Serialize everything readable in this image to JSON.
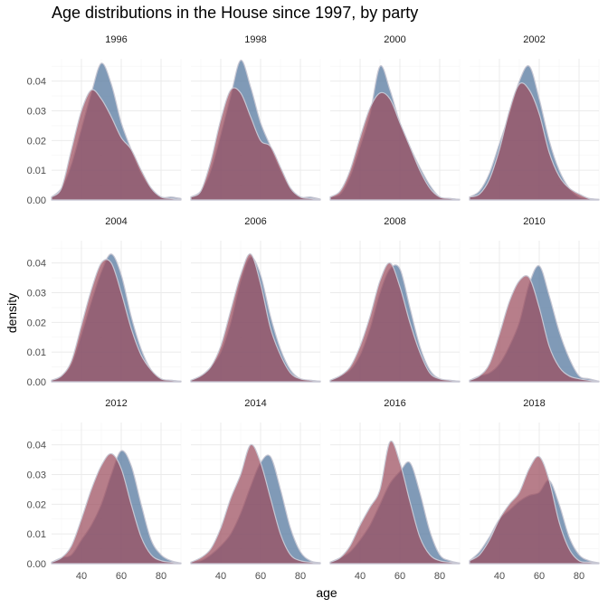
{
  "chart_data": {
    "type": "area",
    "title": "Age distributions in the House since 1997, by party",
    "xlabel": "age",
    "ylabel": "density",
    "xlim": [
      25,
      90
    ],
    "ylim": [
      0,
      0.0475
    ],
    "x_ticks": [
      40,
      60,
      80
    ],
    "y_ticks": [
      0.0,
      0.01,
      0.02,
      0.03,
      0.04
    ],
    "y_tick_labels": [
      "0.00",
      "0.01",
      "0.02",
      "0.03",
      "0.04"
    ],
    "grid": true,
    "facet_layout": {
      "rows": 3,
      "cols": 4
    },
    "colors": {
      "democrat_fill": "#4f739b",
      "republican_fill": "#9b4c5d",
      "outline": "#c7c7d3",
      "grid_major": "#ebebeb",
      "grid_minor": "#f5f5f5"
    },
    "x": [
      25,
      30,
      35,
      40,
      45,
      50,
      55,
      60,
      65,
      70,
      75,
      80,
      85,
      90
    ],
    "panels": [
      {
        "label": "1996",
        "series": [
          {
            "values": [
              0.001,
              0.004,
              0.012,
              0.024,
              0.036,
              0.046,
              0.039,
              0.026,
              0.017,
              0.009,
              0.004,
              0.001,
              0.001,
              0.0005
            ]
          },
          {
            "values": [
              0.001,
              0.004,
              0.017,
              0.03,
              0.037,
              0.034,
              0.028,
              0.021,
              0.017,
              0.01,
              0.004,
              0.001,
              0.0005,
              0.0002
            ]
          }
        ]
      },
      {
        "label": "1998",
        "series": [
          {
            "values": [
              0.001,
              0.003,
              0.01,
              0.022,
              0.035,
              0.047,
              0.038,
              0.026,
              0.018,
              0.01,
              0.004,
              0.001,
              0.001,
              0.0003
            ]
          },
          {
            "values": [
              0.001,
              0.003,
              0.013,
              0.027,
              0.037,
              0.036,
              0.028,
              0.02,
              0.018,
              0.011,
              0.004,
              0.001,
              0.0005,
              0.0002
            ]
          }
        ]
      },
      {
        "label": "2000",
        "series": [
          {
            "values": [
              0.001,
              0.002,
              0.008,
              0.018,
              0.029,
              0.045,
              0.037,
              0.026,
              0.018,
              0.011,
              0.005,
              0.001,
              0.0005,
              0.0002
            ]
          },
          {
            "values": [
              0.001,
              0.003,
              0.01,
              0.021,
              0.031,
              0.036,
              0.034,
              0.026,
              0.018,
              0.01,
              0.004,
              0.001,
              0.0005,
              0.0002
            ]
          }
        ]
      },
      {
        "label": "2002",
        "series": [
          {
            "values": [
              0.001,
              0.003,
              0.009,
              0.019,
              0.029,
              0.04,
              0.045,
              0.034,
              0.02,
              0.01,
              0.004,
              0.001,
              0.0005,
              0.0002
            ]
          },
          {
            "values": [
              0.001,
              0.002,
              0.007,
              0.017,
              0.03,
              0.039,
              0.037,
              0.029,
              0.016,
              0.008,
              0.004,
              0.002,
              0.0005,
              0.0002
            ]
          }
        ]
      },
      {
        "label": "2004",
        "series": [
          {
            "values": [
              0.0005,
              0.002,
              0.006,
              0.016,
              0.027,
              0.037,
              0.043,
              0.036,
              0.022,
              0.011,
              0.004,
              0.001,
              0.0005,
              0.0002
            ]
          },
          {
            "values": [
              0.0005,
              0.002,
              0.007,
              0.019,
              0.031,
              0.04,
              0.04,
              0.03,
              0.018,
              0.009,
              0.004,
              0.001,
              0.0005,
              0.0002
            ]
          }
        ]
      },
      {
        "label": "2006",
        "series": [
          {
            "values": [
              0.0005,
              0.002,
              0.005,
              0.01,
              0.02,
              0.034,
              0.042,
              0.036,
              0.022,
              0.011,
              0.004,
              0.001,
              0.0005,
              0.0002
            ]
          },
          {
            "values": [
              0.0005,
              0.002,
              0.005,
              0.012,
              0.024,
              0.036,
              0.043,
              0.033,
              0.018,
              0.009,
              0.003,
              0.001,
              0.0005,
              0.0002
            ]
          }
        ]
      },
      {
        "label": "2008",
        "series": [
          {
            "values": [
              0.0005,
              0.002,
              0.004,
              0.009,
              0.018,
              0.03,
              0.038,
              0.038,
              0.025,
              0.012,
              0.004,
              0.001,
              0.0005,
              0.0002
            ]
          },
          {
            "values": [
              0.0005,
              0.002,
              0.005,
              0.012,
              0.022,
              0.034,
              0.04,
              0.032,
              0.02,
              0.01,
              0.003,
              0.001,
              0.0005,
              0.0002
            ]
          }
        ]
      },
      {
        "label": "2010",
        "series": [
          {
            "values": [
              0.0005,
              0.002,
              0.003,
              0.006,
              0.012,
              0.02,
              0.033,
              0.039,
              0.029,
              0.017,
              0.008,
              0.002,
              0.001,
              0.0002
            ]
          },
          {
            "values": [
              0.0005,
              0.002,
              0.006,
              0.016,
              0.027,
              0.034,
              0.035,
              0.025,
              0.012,
              0.005,
              0.002,
              0.001,
              0.0005,
              0.0002
            ]
          }
        ]
      },
      {
        "label": "2012",
        "series": [
          {
            "values": [
              0.0005,
              0.002,
              0.003,
              0.008,
              0.013,
              0.02,
              0.03,
              0.038,
              0.033,
              0.02,
              0.008,
              0.003,
              0.001,
              0.0002
            ]
          },
          {
            "values": [
              0.0005,
              0.002,
              0.006,
              0.015,
              0.025,
              0.033,
              0.037,
              0.032,
              0.02,
              0.009,
              0.003,
              0.001,
              0.0005,
              0.0002
            ]
          }
        ]
      },
      {
        "label": "2014",
        "series": [
          {
            "values": [
              0.0005,
              0.001,
              0.003,
              0.006,
              0.01,
              0.017,
              0.026,
              0.034,
              0.036,
              0.025,
              0.012,
              0.004,
              0.001,
              0.0003
            ]
          },
          {
            "values": [
              0.0005,
              0.002,
              0.005,
              0.012,
              0.022,
              0.03,
              0.04,
              0.034,
              0.022,
              0.01,
              0.003,
              0.001,
              0.0005,
              0.0002
            ]
          }
        ]
      },
      {
        "label": "2016",
        "series": [
          {
            "values": [
              0.0005,
              0.002,
              0.004,
              0.008,
              0.013,
              0.02,
              0.027,
              0.031,
              0.034,
              0.024,
              0.011,
              0.003,
              0.001,
              0.0002
            ]
          },
          {
            "values": [
              0.0005,
              0.002,
              0.006,
              0.013,
              0.019,
              0.025,
              0.041,
              0.034,
              0.021,
              0.009,
              0.003,
              0.001,
              0.0005,
              0.0002
            ]
          }
        ]
      },
      {
        "label": "2018",
        "series": [
          {
            "values": [
              0.001,
              0.004,
              0.009,
              0.015,
              0.018,
              0.021,
              0.023,
              0.024,
              0.028,
              0.02,
              0.009,
              0.003,
              0.001,
              0.0003
            ]
          },
          {
            "values": [
              0.001,
              0.003,
              0.008,
              0.015,
              0.02,
              0.024,
              0.032,
              0.036,
              0.028,
              0.014,
              0.005,
              0.001,
              0.0005,
              0.0002
            ]
          }
        ]
      }
    ]
  }
}
